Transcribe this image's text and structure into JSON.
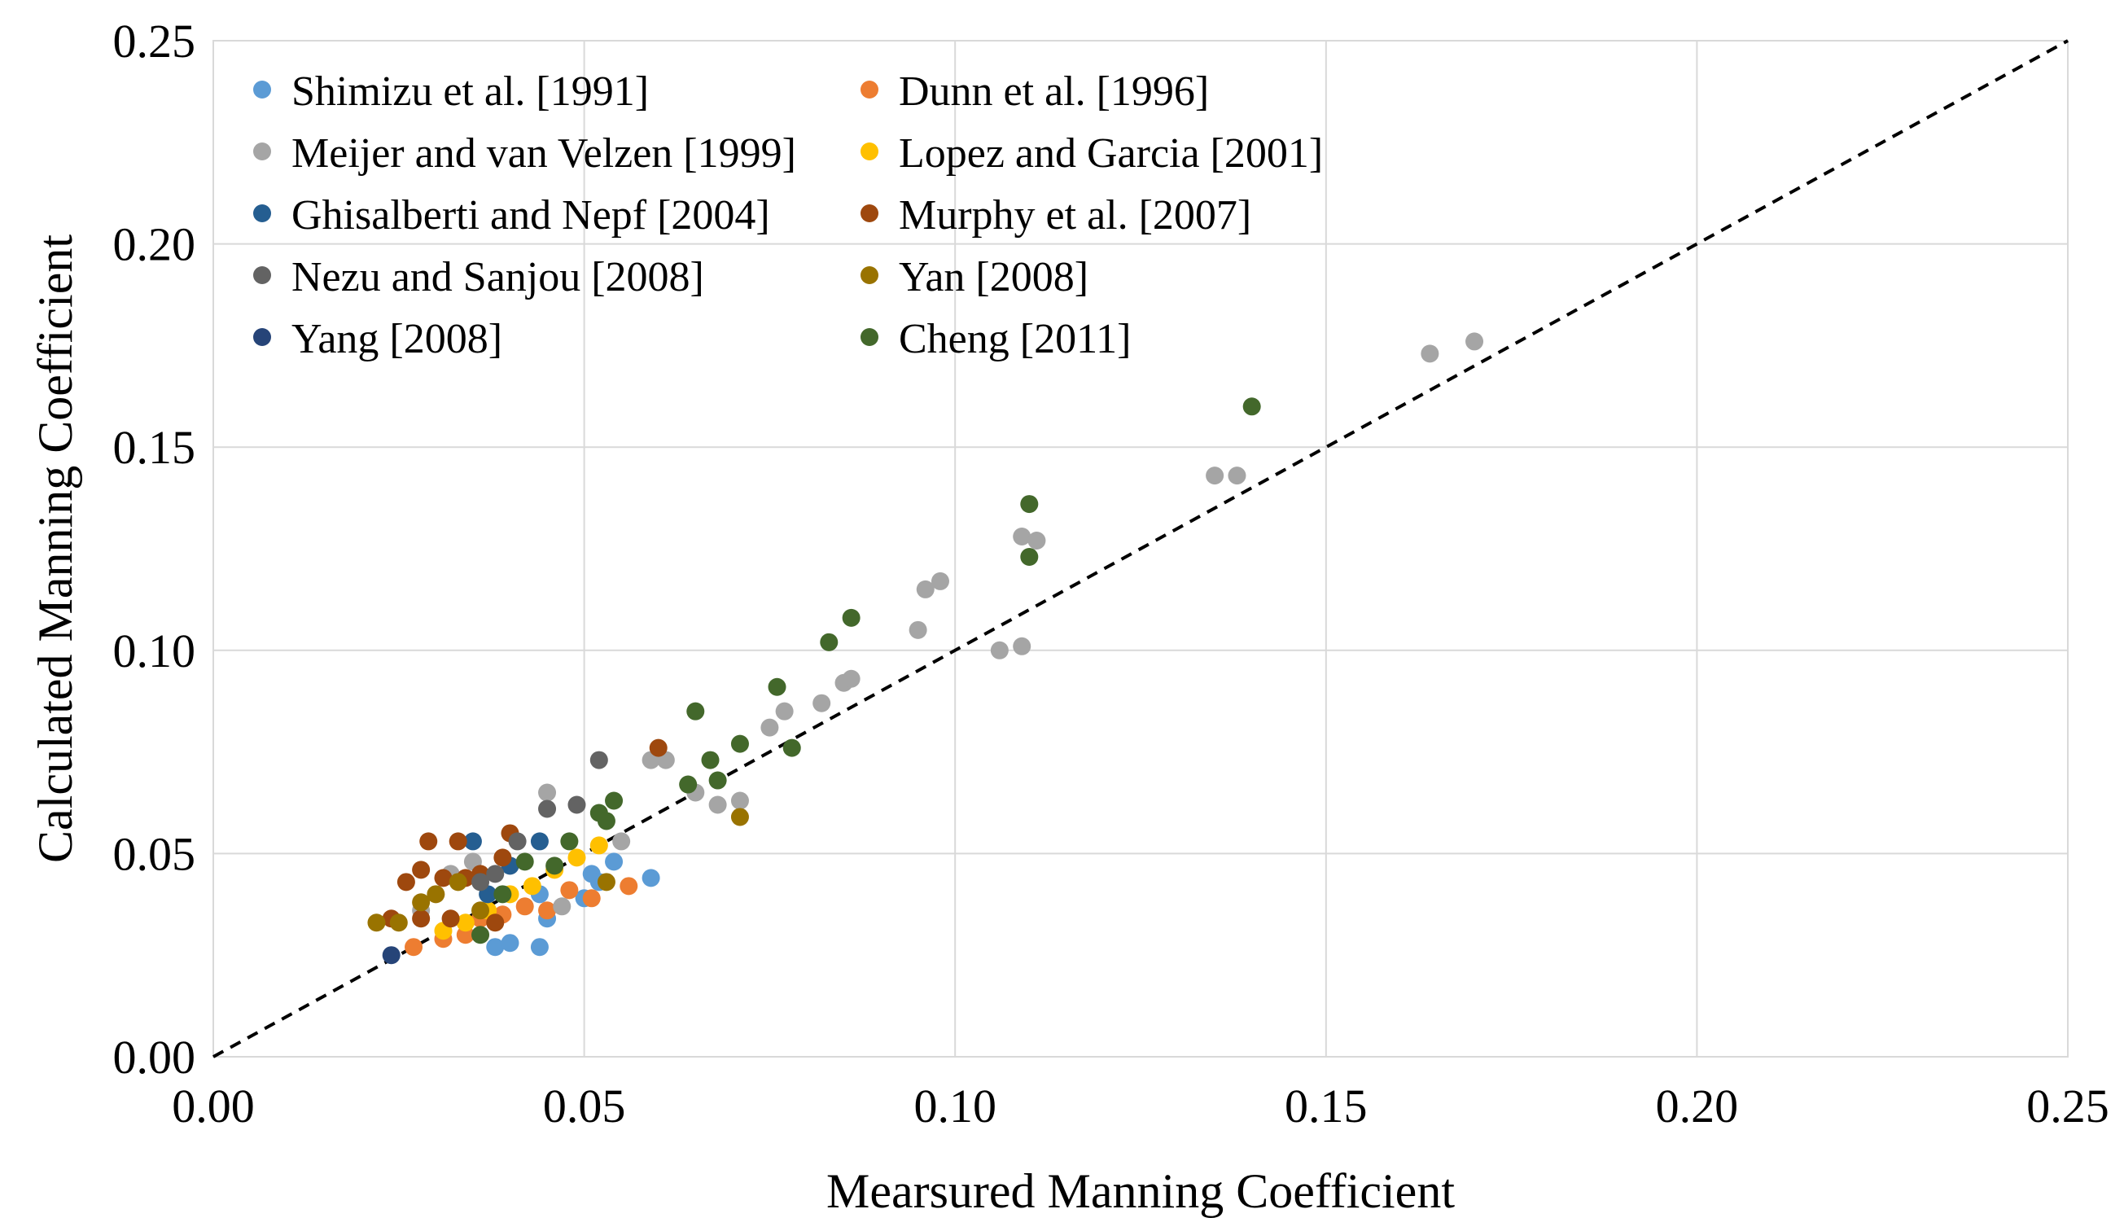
{
  "chart_data": {
    "type": "scatter",
    "title": "",
    "xlabel": "Mearsured Manning Coefficient",
    "ylabel": "Calculated Manning Coefficient",
    "xlim": [
      0,
      0.25
    ],
    "ylim": [
      0,
      0.25
    ],
    "x_ticks": [
      "0.00",
      "0.05",
      "0.10",
      "0.15",
      "0.20",
      "0.25"
    ],
    "y_ticks": [
      "0.00",
      "0.05",
      "0.10",
      "0.15",
      "0.20",
      "0.25"
    ],
    "grid": true,
    "legend_position": "top-left",
    "reference_line": {
      "label": "1:1 line",
      "style": "dashed",
      "from": [
        0,
        0
      ],
      "to": [
        0.25,
        0.25
      ]
    },
    "series": [
      {
        "name": "Shimizu et al. [1991]",
        "color": "#5b9bd5",
        "x": [
          0.038,
          0.04,
          0.044,
          0.045,
          0.05,
          0.051,
          0.052,
          0.054,
          0.059,
          0.044
        ],
        "y": [
          0.027,
          0.028,
          0.027,
          0.034,
          0.039,
          0.045,
          0.043,
          0.048,
          0.044,
          0.04
        ]
      },
      {
        "name": "Dunn et al. [1996]",
        "color": "#ed7d31",
        "x": [
          0.027,
          0.031,
          0.034,
          0.036,
          0.039,
          0.042,
          0.045,
          0.048,
          0.051,
          0.056
        ],
        "y": [
          0.027,
          0.029,
          0.03,
          0.034,
          0.035,
          0.037,
          0.036,
          0.041,
          0.039,
          0.042
        ]
      },
      {
        "name": "Meijer and van Velzen [1999]",
        "color": "#a5a5a5",
        "x": [
          0.028,
          0.032,
          0.035,
          0.04,
          0.045,
          0.047,
          0.055,
          0.059,
          0.061,
          0.065,
          0.068,
          0.071,
          0.075,
          0.077,
          0.082,
          0.085,
          0.086,
          0.095,
          0.096,
          0.098,
          0.106,
          0.109,
          0.109,
          0.111,
          0.135,
          0.138,
          0.164,
          0.17
        ],
        "y": [
          0.036,
          0.045,
          0.048,
          0.047,
          0.065,
          0.037,
          0.053,
          0.073,
          0.073,
          0.065,
          0.062,
          0.063,
          0.081,
          0.085,
          0.087,
          0.092,
          0.093,
          0.105,
          0.115,
          0.117,
          0.1,
          0.101,
          0.128,
          0.127,
          0.143,
          0.143,
          0.173,
          0.176
        ]
      },
      {
        "name": "Lopez and Garcia [2001]",
        "color": "#ffc000",
        "x": [
          0.031,
          0.034,
          0.037,
          0.04,
          0.043,
          0.046,
          0.049,
          0.052
        ],
        "y": [
          0.031,
          0.033,
          0.036,
          0.04,
          0.042,
          0.046,
          0.049,
          0.052
        ]
      },
      {
        "name": "Ghisalberti and Nepf [2004]",
        "color": "#255e91",
        "x": [
          0.035,
          0.037,
          0.04,
          0.044
        ],
        "y": [
          0.053,
          0.04,
          0.047,
          0.053
        ]
      },
      {
        "name": "Murphy et al. [2007]",
        "color": "#9e480e",
        "x": [
          0.024,
          0.026,
          0.028,
          0.029,
          0.031,
          0.033,
          0.034,
          0.036,
          0.038,
          0.039,
          0.04,
          0.06,
          0.028,
          0.032
        ],
        "y": [
          0.034,
          0.043,
          0.046,
          0.053,
          0.044,
          0.053,
          0.044,
          0.045,
          0.033,
          0.049,
          0.055,
          0.076,
          0.034,
          0.034
        ]
      },
      {
        "name": "Nezu and Sanjou [2008]",
        "color": "#636363",
        "x": [
          0.036,
          0.038,
          0.041,
          0.045,
          0.049,
          0.052
        ],
        "y": [
          0.043,
          0.045,
          0.053,
          0.061,
          0.062,
          0.073
        ]
      },
      {
        "name": "Yan [2008]",
        "color": "#997300",
        "x": [
          0.022,
          0.025,
          0.028,
          0.03,
          0.033,
          0.036,
          0.053,
          0.071
        ],
        "y": [
          0.033,
          0.033,
          0.038,
          0.04,
          0.043,
          0.036,
          0.043,
          0.059
        ]
      },
      {
        "name": "Yang [2008]",
        "color": "#264478",
        "x": [
          0.024
        ],
        "y": [
          0.025
        ]
      },
      {
        "name": "Cheng [2011]",
        "color": "#43682b",
        "x": [
          0.036,
          0.039,
          0.042,
          0.046,
          0.048,
          0.052,
          0.053,
          0.054,
          0.064,
          0.065,
          0.067,
          0.068,
          0.071,
          0.076,
          0.078,
          0.083,
          0.086,
          0.11,
          0.11,
          0.14
        ],
        "y": [
          0.03,
          0.04,
          0.048,
          0.047,
          0.053,
          0.06,
          0.058,
          0.063,
          0.067,
          0.085,
          0.073,
          0.068,
          0.077,
          0.091,
          0.076,
          0.102,
          0.108,
          0.136,
          0.123,
          0.16
        ]
      }
    ]
  }
}
